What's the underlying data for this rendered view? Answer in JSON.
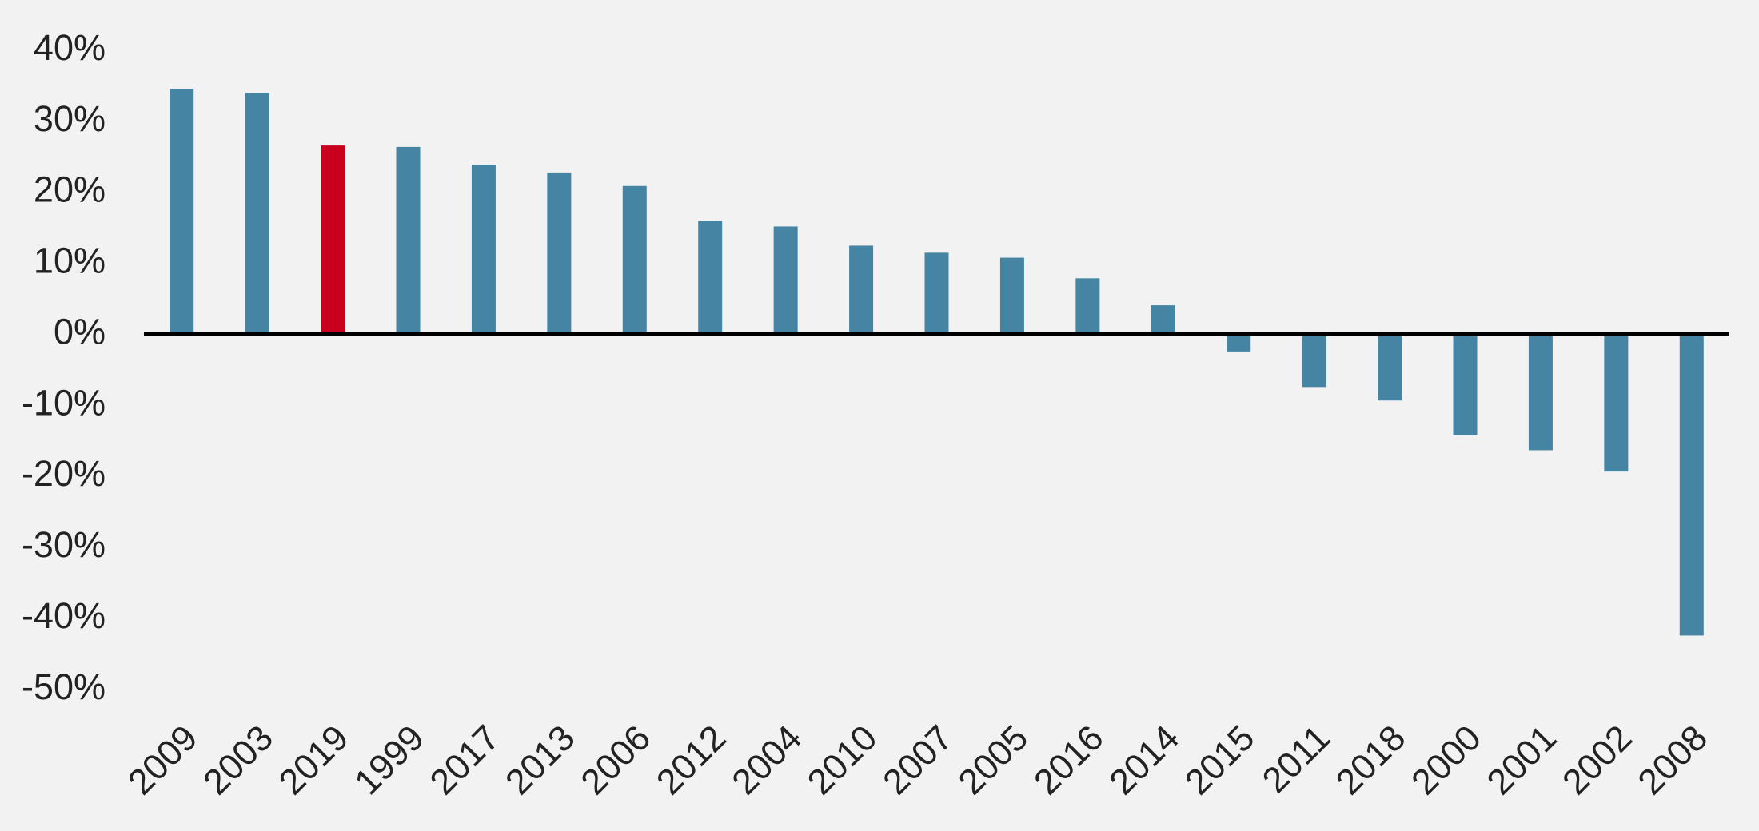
{
  "chart_data": {
    "type": "bar",
    "categories": [
      "2009",
      "2003",
      "2019",
      "1999",
      "2017",
      "2013",
      "2006",
      "2012",
      "2004",
      "2010",
      "2007",
      "2005",
      "2016",
      "2014",
      "2015",
      "2011",
      "2018",
      "2000",
      "2001",
      "2002",
      "2008"
    ],
    "values": [
      34.6,
      34.0,
      26.6,
      26.4,
      23.9,
      22.8,
      20.9,
      16.0,
      15.2,
      12.5,
      11.5,
      10.8,
      7.9,
      4.1,
      -2.4,
      -7.4,
      -9.3,
      -14.2,
      -16.3,
      -19.3,
      -42.4
    ],
    "colors": [
      "#4684a3",
      "#4684a3",
      "#c8001e",
      "#4684a3",
      "#4684a3",
      "#4684a3",
      "#4684a3",
      "#4684a3",
      "#4684a3",
      "#4684a3",
      "#4684a3",
      "#4684a3",
      "#4684a3",
      "#4684a3",
      "#4684a3",
      "#4684a3",
      "#4684a3",
      "#4684a3",
      "#4684a3",
      "#4684a3",
      "#4684a3"
    ],
    "ylim": [
      -50,
      40
    ],
    "yticks": [
      {
        "value": -50,
        "label": "-50%"
      },
      {
        "value": -40,
        "label": "-40%"
      },
      {
        "value": -30,
        "label": "-30%"
      },
      {
        "value": -20,
        "label": "-20%"
      },
      {
        "value": -10,
        "label": "-10%"
      },
      {
        "value": 0,
        "label": "0%"
      },
      {
        "value": 10,
        "label": "10%"
      },
      {
        "value": 20,
        "label": "20%"
      },
      {
        "value": 30,
        "label": "30%"
      },
      {
        "value": 40,
        "label": "40%"
      }
    ],
    "grid": false,
    "zero_line": true
  }
}
